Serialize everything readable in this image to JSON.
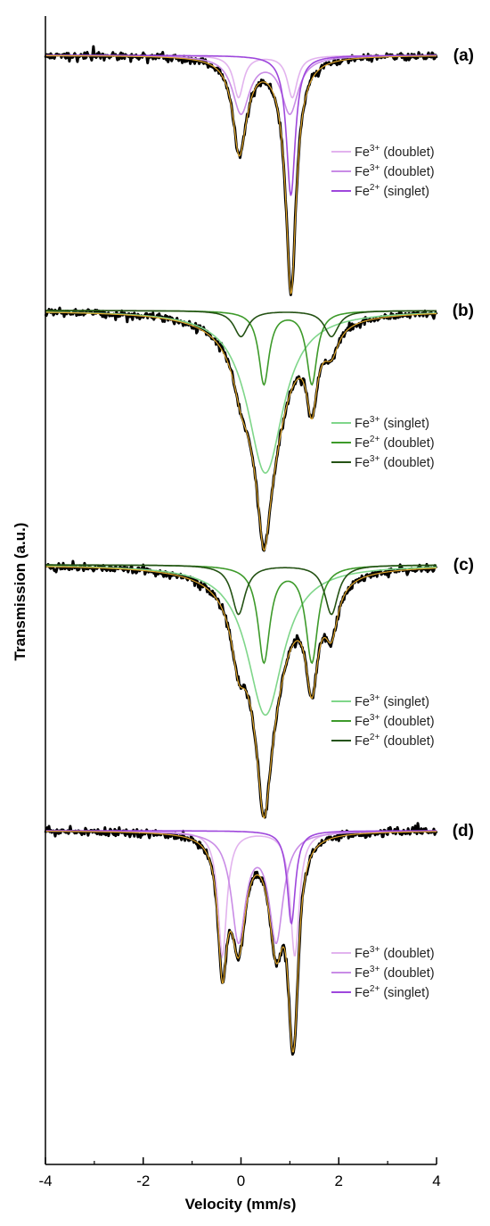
{
  "chart_data": {
    "type": "line",
    "xlabel": "Velocity (mm/s)",
    "ylabel": "Transmission (a.u.)",
    "xlim": [
      -4,
      4
    ],
    "xticks": [
      "-4",
      "-2",
      "0",
      "2",
      "4"
    ],
    "xtick_values": [
      -4,
      -2,
      0,
      2,
      4
    ],
    "colors": {
      "data": "#000000",
      "envelope": "#e0a62a",
      "axis": "#000000"
    },
    "panels": [
      {
        "label": "(a)",
        "depth": 1.0,
        "components": [
          {
            "name": "Fe3+ (doublet)",
            "color": "#e2b3ee",
            "peaks": [
              [
                -0.05,
                0.25,
                0.17
              ],
              [
                1.05,
                0.25,
                0.17
              ]
            ]
          },
          {
            "name": "Fe3+ (doublet)",
            "color": "#c98ce6",
            "peaks": [
              [
                0.0,
                0.42,
                0.23
              ],
              [
                1.0,
                0.42,
                0.23
              ]
            ]
          },
          {
            "name": "Fe2+ (singlet)",
            "color": "#9e47dc",
            "peaks": [
              [
                1.02,
                0.22,
                0.57
              ]
            ]
          }
        ],
        "legend": [
          {
            "prefix": "Fe",
            "sup": "3+",
            "suffix": " (doublet)",
            "color": "#e2b3ee"
          },
          {
            "prefix": "Fe",
            "sup": "3+",
            "suffix": " (doublet)",
            "color": "#c98ce6"
          },
          {
            "prefix": "Fe",
            "sup": "2+",
            "suffix": " (singlet)",
            "color": "#9e47dc"
          }
        ]
      },
      {
        "label": "(b)",
        "depth": 1.0,
        "components": [
          {
            "name": "Fe3+ (singlet)",
            "color": "#7fd68a",
            "peaks": [
              [
                0.5,
                0.9,
                0.69
              ]
            ]
          },
          {
            "name": "Fe2+ (doublet)",
            "color": "#3d9a2a",
            "peaks": [
              [
                0.47,
                0.26,
                0.31
              ],
              [
                1.45,
                0.26,
                0.31
              ]
            ]
          },
          {
            "name": "Fe3+ (doublet)",
            "color": "#245214",
            "peaks": [
              [
                0.0,
                0.35,
                0.11
              ],
              [
                1.85,
                0.35,
                0.11
              ]
            ]
          }
        ],
        "legend": [
          {
            "prefix": "Fe",
            "sup": "3+",
            "suffix": " (singlet)",
            "color": "#7fd68a"
          },
          {
            "prefix": "Fe",
            "sup": "2+",
            "suffix": " (doublet)",
            "color": "#3d9a2a"
          },
          {
            "prefix": "Fe",
            "sup": "3+",
            "suffix": " (doublet)",
            "color": "#245214"
          }
        ]
      },
      {
        "label": "(c)",
        "depth": 1.0,
        "components": [
          {
            "name": "Fe3+ (singlet)",
            "color": "#7fd68a",
            "peaks": [
              [
                0.5,
                0.9,
                0.61
              ]
            ]
          },
          {
            "name": "Fe3+ (doublet)",
            "color": "#3d9a2a",
            "peaks": [
              [
                0.47,
                0.3,
                0.39
              ],
              [
                1.45,
                0.3,
                0.39
              ]
            ]
          },
          {
            "name": "Fe2+ (doublet)",
            "color": "#245214",
            "peaks": [
              [
                -0.05,
                0.33,
                0.2
              ],
              [
                1.85,
                0.33,
                0.2
              ]
            ]
          }
        ],
        "legend": [
          {
            "prefix": "Fe",
            "sup": "3+",
            "suffix": " (singlet)",
            "color": "#7fd68a"
          },
          {
            "prefix": "Fe",
            "sup": "3+",
            "suffix": " (doublet)",
            "color": "#3d9a2a"
          },
          {
            "prefix": "Fe",
            "sup": "2+",
            "suffix": " (doublet)",
            "color": "#245214"
          }
        ]
      },
      {
        "label": "(d)",
        "depth": 1.0,
        "components": [
          {
            "name": "Fe3+ (doublet)",
            "color": "#e2b3ee",
            "peaks": [
              [
                -0.38,
                0.22,
                0.43
              ],
              [
                1.1,
                0.22,
                0.43
              ]
            ]
          },
          {
            "name": "Fe3+ (doublet)",
            "color": "#c98ce6",
            "peaks": [
              [
                -0.05,
                0.35,
                0.37
              ],
              [
                0.72,
                0.35,
                0.37
              ]
            ]
          },
          {
            "name": "Fe2+ (singlet)",
            "color": "#9e47dc",
            "peaks": [
              [
                1.03,
                0.2,
                0.32
              ]
            ]
          }
        ],
        "legend": [
          {
            "prefix": "Fe",
            "sup": "3+",
            "suffix": " (doublet)",
            "color": "#e2b3ee"
          },
          {
            "prefix": "Fe",
            "sup": "3+",
            "suffix": " (doublet)",
            "color": "#c98ce6"
          },
          {
            "prefix": "Fe",
            "sup": "2+",
            "suffix": " (singlet)",
            "color": "#9e47dc"
          }
        ]
      }
    ]
  }
}
